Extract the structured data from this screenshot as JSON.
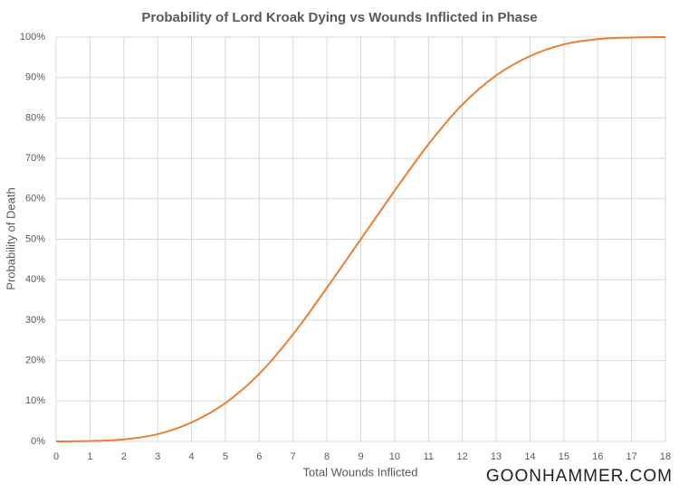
{
  "chart_data": {
    "type": "line",
    "title": "Probability of Lord Kroak Dying vs Wounds Inflicted in Phase",
    "x_label": "Total Wounds Inflicted",
    "y_label": "Probability of Death",
    "watermark": "GOONHAMMER.COM",
    "x": [
      0,
      1,
      2,
      3,
      4,
      5,
      6,
      7,
      8,
      9,
      10,
      11,
      12,
      13,
      14,
      15,
      16,
      17,
      18
    ],
    "series": [
      {
        "name": "Probability of Death",
        "color": "#ed7d31",
        "values": [
          0,
          0.1,
          0.5,
          1.8,
          4.7,
          9.5,
          16.7,
          26.5,
          38,
          50,
          62,
          73.5,
          83.3,
          90.5,
          95.3,
          98.2,
          99.5,
          99.9,
          100
        ]
      }
    ],
    "xlim": [
      0,
      18
    ],
    "xticks": [
      0,
      1,
      2,
      3,
      4,
      5,
      6,
      7,
      8,
      9,
      10,
      11,
      12,
      13,
      14,
      15,
      16,
      17,
      18
    ],
    "ylim": [
      0,
      100
    ],
    "yticks": [
      {
        "value": 0,
        "label": "0%"
      },
      {
        "value": 10,
        "label": "10%"
      },
      {
        "value": 20,
        "label": "20%"
      },
      {
        "value": 30,
        "label": "30%"
      },
      {
        "value": 40,
        "label": "40%"
      },
      {
        "value": 50,
        "label": "50%"
      },
      {
        "value": 60,
        "label": "60%"
      },
      {
        "value": 70,
        "label": "70%"
      },
      {
        "value": 80,
        "label": "80%"
      },
      {
        "value": 90,
        "label": "90%"
      },
      {
        "value": 100,
        "label": "100%"
      }
    ],
    "grid": true
  }
}
